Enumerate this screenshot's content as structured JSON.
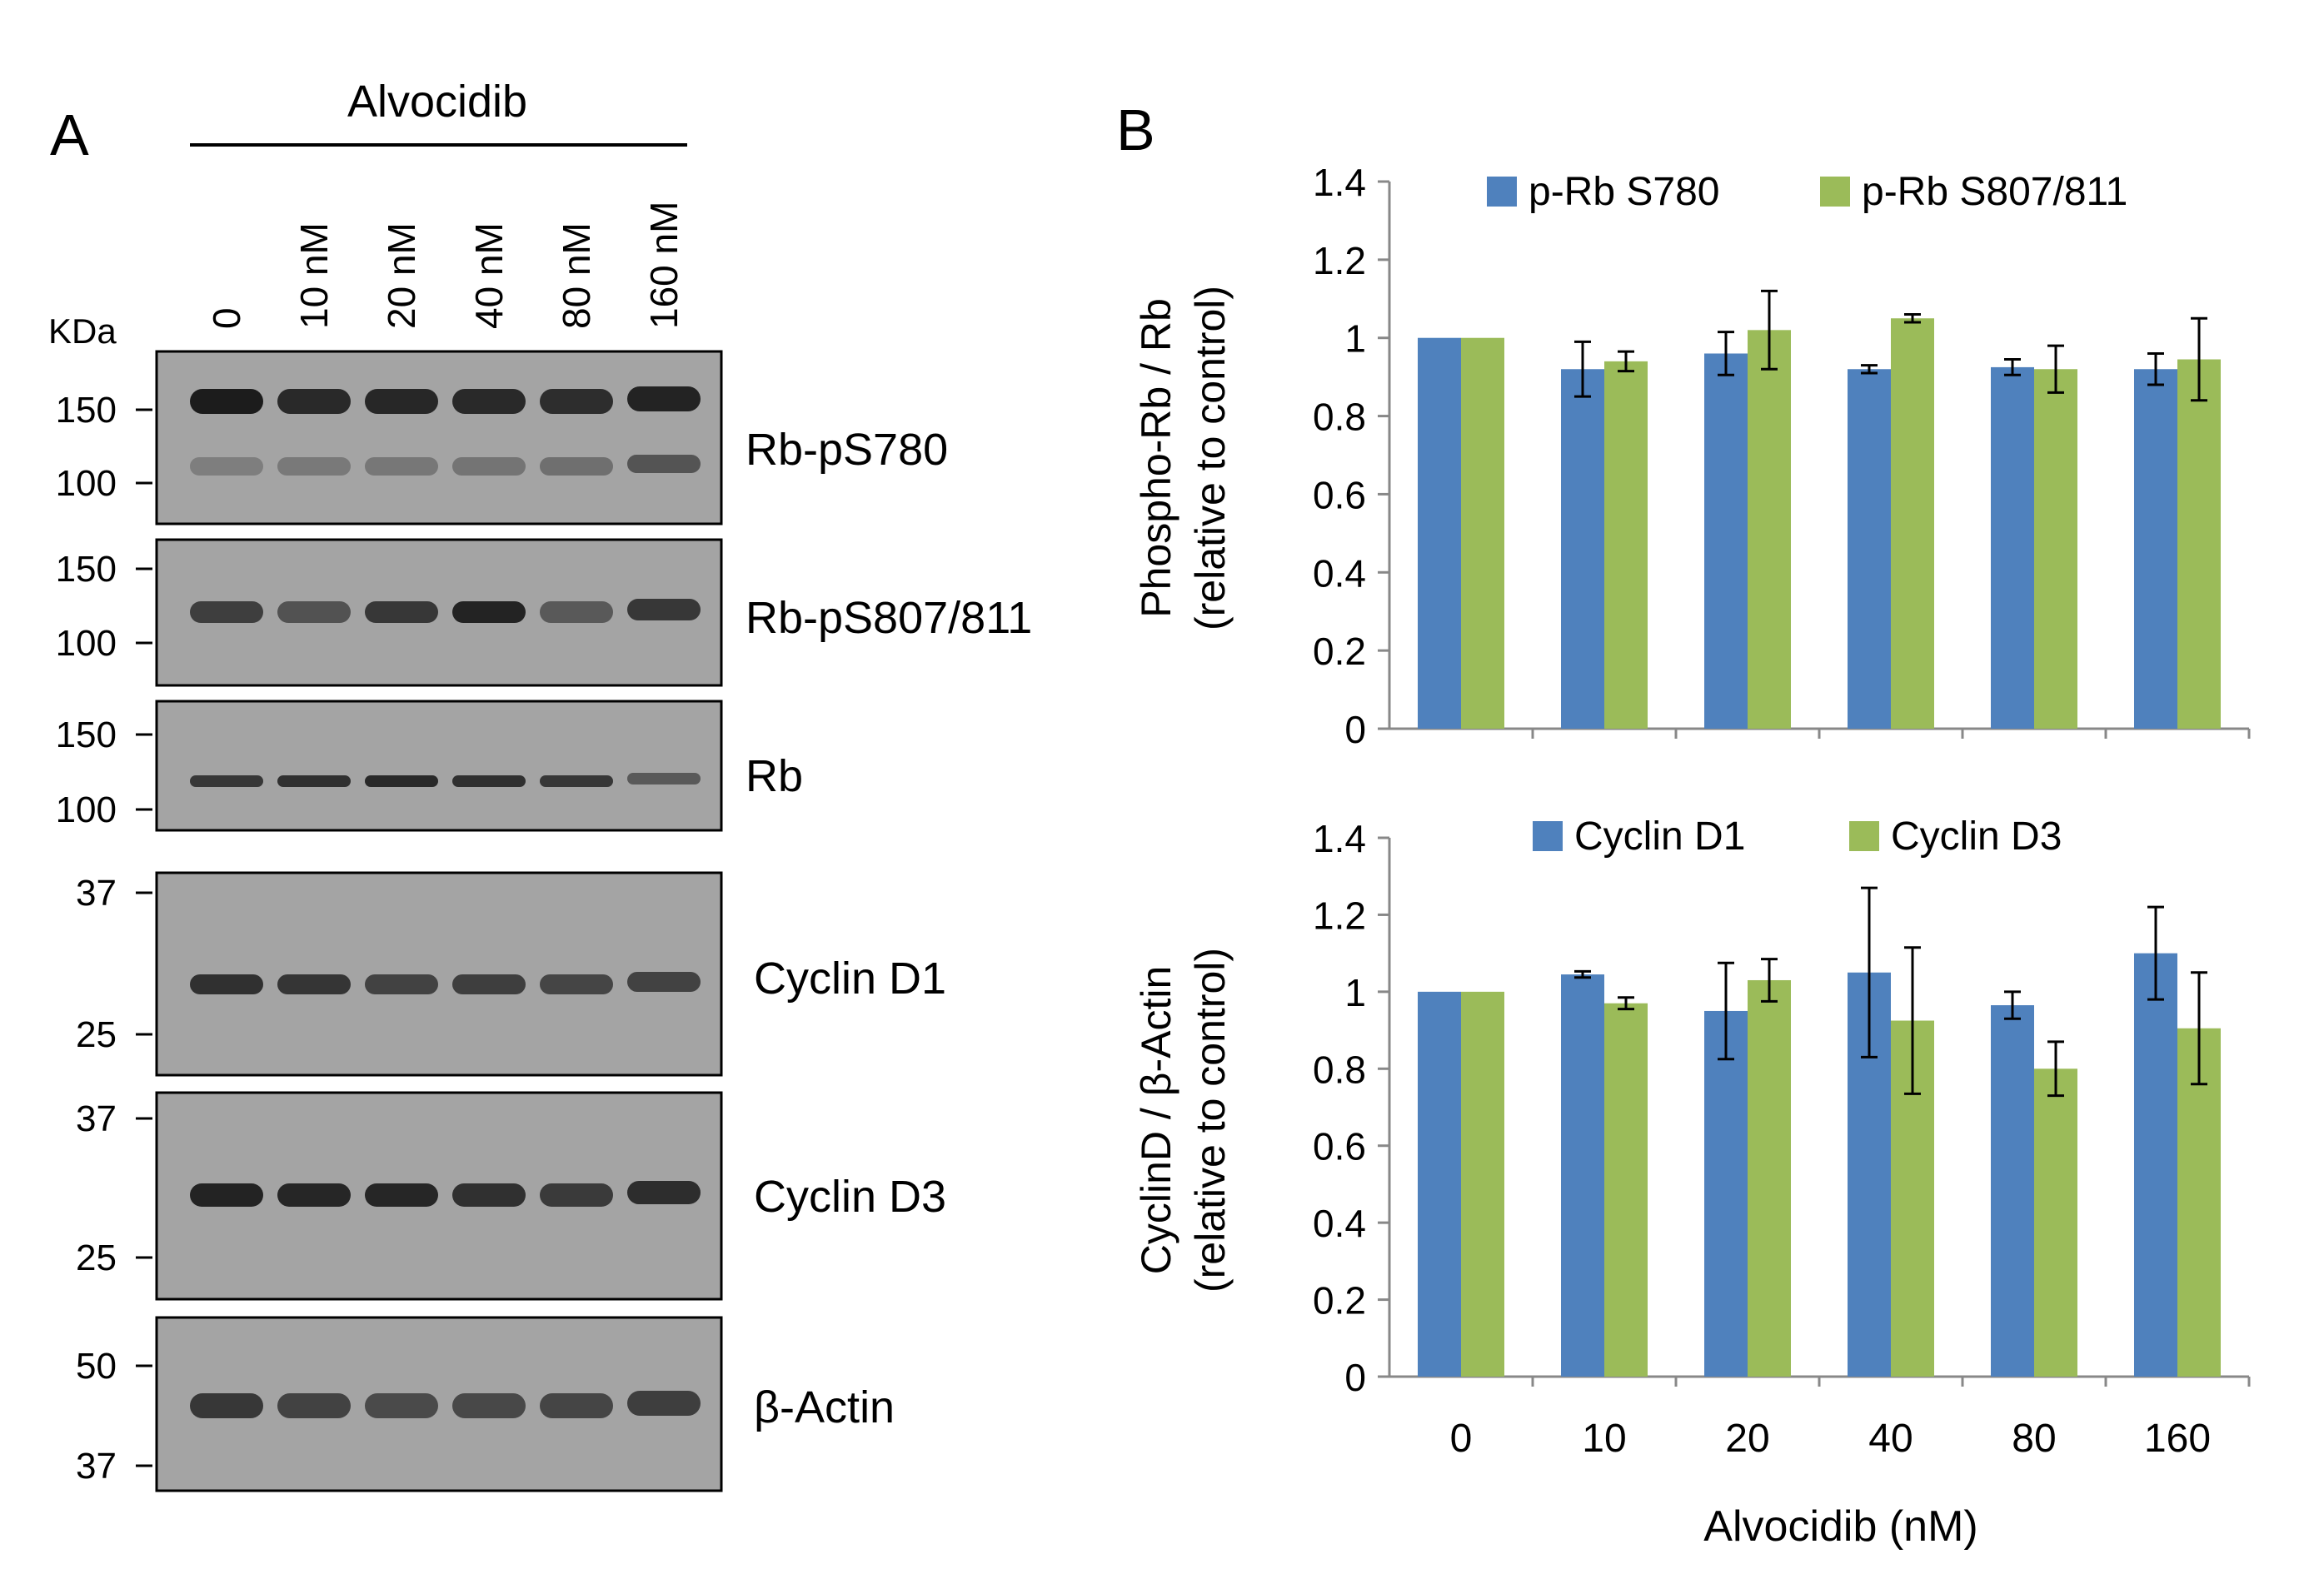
{
  "panel_a": {
    "label": "A",
    "drug_header": "Alvocidib",
    "kda_label": "KDa",
    "lanes": [
      "0",
      "10 nM",
      "20 nM",
      "40 nM",
      "80 nM",
      "160 nM"
    ],
    "blots": [
      {
        "name": "Rb-pS780",
        "markers": [
          "150",
          "100"
        ]
      },
      {
        "name": "Rb-pS807/811",
        "markers": [
          "150",
          "100"
        ]
      },
      {
        "name": "Rb",
        "markers": [
          "150",
          "100"
        ]
      },
      {
        "name": "Cyclin D1",
        "markers": [
          "37",
          "25"
        ]
      },
      {
        "name": "Cyclin D3",
        "markers": [
          "37",
          "25"
        ]
      },
      {
        "name": "β-Actin",
        "markers": [
          "50",
          "37"
        ]
      }
    ]
  },
  "panel_b": {
    "label": "B",
    "xlabel": "Alvocidib (nM)"
  },
  "colors": {
    "blue": "#4F81BD",
    "green": "#9BBB59",
    "blot_bg": "#a4a4a4",
    "band": "#1c1c1c"
  },
  "chart_data": [
    {
      "type": "bar",
      "title": "",
      "ylabel_line1": "Phospho-Rb / Rb",
      "ylabel_line2": "(relative to control)",
      "xlabel": "",
      "categories": [
        "0",
        "10",
        "20",
        "40",
        "80",
        "160"
      ],
      "yticks": [
        "0",
        "0.2",
        "0.4",
        "0.6",
        "0.8",
        "1",
        "1.2",
        "1.4"
      ],
      "ylim": [
        0,
        1.4
      ],
      "legend_position": "top",
      "series": [
        {
          "name": "p-Rb S780",
          "color": "#4F81BD",
          "values": [
            1.0,
            0.92,
            0.96,
            0.92,
            0.925,
            0.92
          ],
          "errors": [
            0.0,
            0.07,
            0.055,
            0.01,
            0.02,
            0.04
          ]
        },
        {
          "name": "p-Rb S807/811",
          "color": "#9BBB59",
          "values": [
            1.0,
            0.94,
            1.02,
            1.05,
            0.92,
            0.945
          ],
          "errors": [
            0.0,
            0.025,
            0.1,
            0.01,
            0.06,
            0.105
          ]
        }
      ]
    },
    {
      "type": "bar",
      "title": "",
      "ylabel_line1": "CyclinD / β-Actin",
      "ylabel_line2": "(relative to control)",
      "xlabel": "Alvocidib (nM)",
      "categories": [
        "0",
        "10",
        "20",
        "40",
        "80",
        "160"
      ],
      "yticks": [
        "0",
        "0.2",
        "0.4",
        "0.6",
        "0.8",
        "1",
        "1.2",
        "1.4"
      ],
      "ylim": [
        0,
        1.4
      ],
      "legend_position": "top",
      "series": [
        {
          "name": "Cyclin D1",
          "color": "#4F81BD",
          "values": [
            1.0,
            1.045,
            0.95,
            1.05,
            0.965,
            1.1
          ],
          "errors": [
            0.0,
            0.008,
            0.125,
            0.22,
            0.035,
            0.12
          ]
        },
        {
          "name": "Cyclin D3",
          "color": "#9BBB59",
          "values": [
            1.0,
            0.97,
            1.03,
            0.925,
            0.8,
            0.905
          ],
          "errors": [
            0.0,
            0.015,
            0.055,
            0.19,
            0.07,
            0.145
          ]
        }
      ]
    }
  ]
}
